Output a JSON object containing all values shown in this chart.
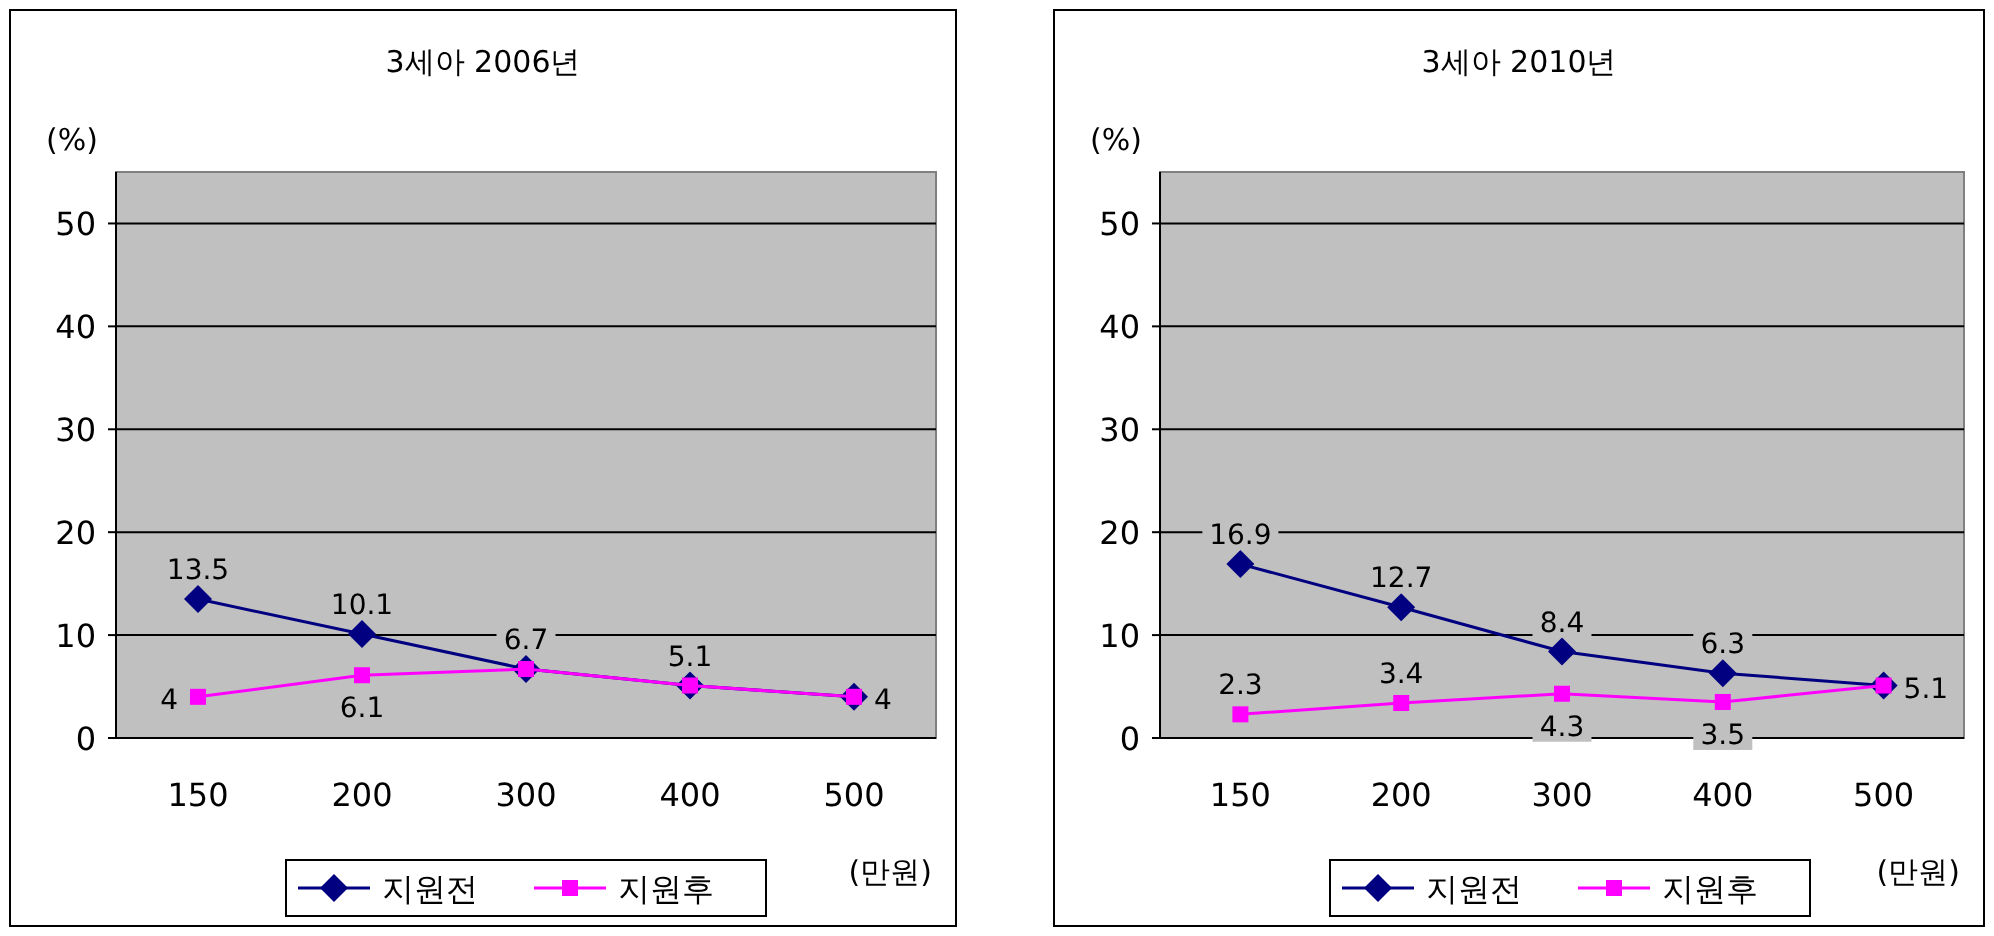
{
  "chart_data": [
    {
      "type": "line",
      "title": "3세아 2006년",
      "ylabel": "(%)",
      "xlabel": "(만원)",
      "categories": [
        "150",
        "200",
        "300",
        "400",
        "500"
      ],
      "ylim": [
        0,
        55
      ],
      "yticks": [
        0,
        10,
        20,
        30,
        40,
        50
      ],
      "grid": "y",
      "legend": "bottom",
      "series": [
        {
          "name": "지원전",
          "color": "#000080",
          "marker": "diamond",
          "values": [
            13.5,
            10.1,
            6.7,
            5.1,
            4
          ],
          "value_labels": [
            "13.5",
            "10.1",
            "6.7",
            null,
            "4"
          ]
        },
        {
          "name": "지원후",
          "color": "#ff00ff",
          "marker": "square",
          "values": [
            4,
            6.1,
            6.7,
            5.1,
            4
          ],
          "value_labels": [
            "4",
            "6.1",
            null,
            "5.1",
            null
          ]
        }
      ]
    },
    {
      "type": "line",
      "title": "3세아 2010년",
      "ylabel": "(%)",
      "xlabel": "(만원)",
      "categories": [
        "150",
        "200",
        "300",
        "400",
        "500"
      ],
      "ylim": [
        0,
        55
      ],
      "yticks": [
        0,
        10,
        20,
        30,
        40,
        50
      ],
      "grid": "y",
      "legend": "bottom",
      "series": [
        {
          "name": "지원전",
          "color": "#000080",
          "marker": "diamond",
          "values": [
            16.9,
            12.7,
            8.4,
            6.3,
            5.1
          ],
          "value_labels": [
            "16.9",
            "12.7",
            "8.4",
            "6.3",
            "5.1"
          ]
        },
        {
          "name": "지원후",
          "color": "#ff00ff",
          "marker": "square",
          "values": [
            2.3,
            3.4,
            4.3,
            3.5,
            5.1
          ],
          "value_labels": [
            "2.3",
            "3.4",
            "4.3",
            "3.5",
            null
          ]
        }
      ]
    }
  ]
}
